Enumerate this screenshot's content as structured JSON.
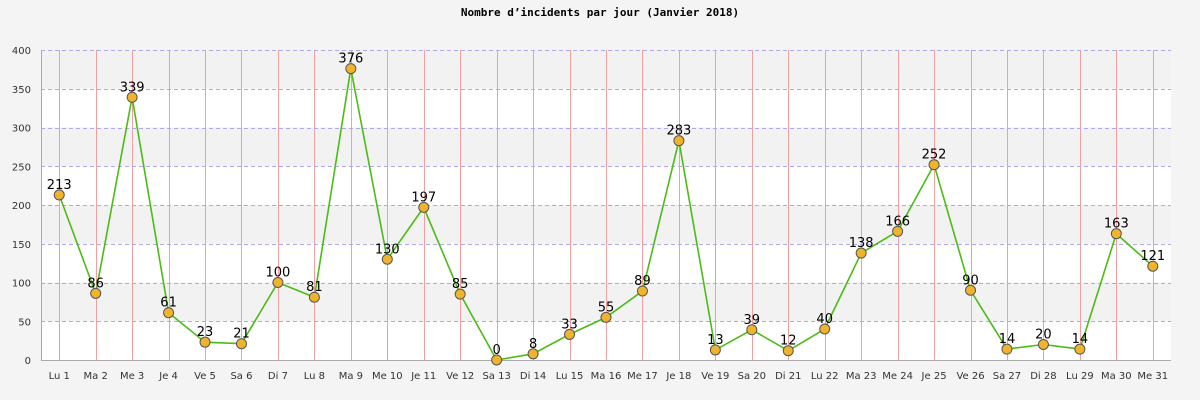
{
  "chart_data": {
    "type": "line",
    "title": "Nombre d’incidents par jour (Janvier 2018)",
    "xlabel": "",
    "ylabel": "",
    "ylim": [
      0,
      400
    ],
    "yticks": [
      0,
      50,
      100,
      150,
      200,
      250,
      300,
      350,
      400
    ],
    "grid": true,
    "legend": "none",
    "categories": [
      "Lu 1",
      "Ma 2",
      "Me 3",
      "Je 4",
      "Ve 5",
      "Sa 6",
      "Di 7",
      "Lu 8",
      "Ma 9",
      "Me 10",
      "Je 11",
      "Ve 12",
      "Sa 13",
      "Di 14",
      "Lu 15",
      "Ma 16",
      "Me 17",
      "Je 18",
      "Ve 19",
      "Sa 20",
      "Di 21",
      "Lu 22",
      "Ma 23",
      "Me 24",
      "Je 25",
      "Ve 26",
      "Sa 27",
      "Di 28",
      "Lu 29",
      "Ma 30",
      "Me 31"
    ],
    "series": [
      {
        "name": "",
        "values": [
          213,
          86,
          339,
          61,
          23,
          21,
          100,
          81,
          376,
          130,
          197,
          85,
          0,
          8,
          33,
          55,
          89,
          283,
          13,
          39,
          12,
          40,
          138,
          166,
          252,
          90,
          14,
          20,
          14,
          163,
          121
        ]
      }
    ],
    "colors": {
      "line": "#4cbb17",
      "marker_fill": "#f0b42c",
      "marker_stroke": "#555555",
      "band_alt": "#f2f2f2",
      "plot_bg": "#ffffff",
      "hgrid": "#b0a8e8",
      "vgrid": "#f0a0a0"
    }
  }
}
